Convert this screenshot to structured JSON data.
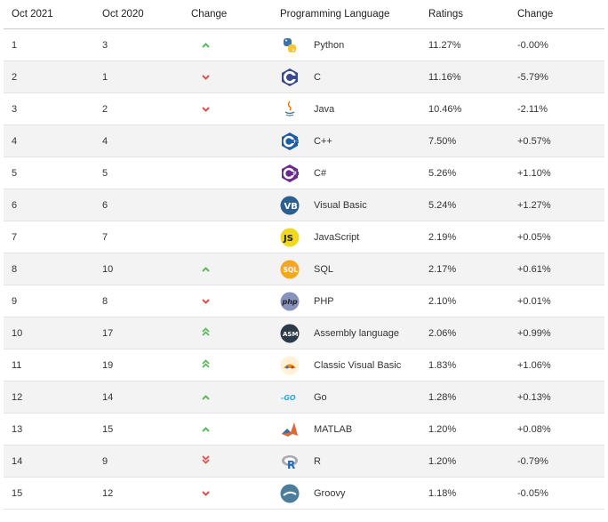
{
  "headers": {
    "rank_now": "Oct 2021",
    "rank_prev": "Oct 2020",
    "change": "Change",
    "language": "Programming Language",
    "ratings": "Ratings",
    "rating_change": "Change"
  },
  "colors": {
    "up": "#5cb85c",
    "down": "#d9534f",
    "stripe": "#f3f3f3"
  },
  "rows": [
    {
      "rank_now": "1",
      "rank_prev": "3",
      "change_icon": "arrow-up-icon",
      "language": "Python",
      "logo_icon": "python-logo-icon",
      "ratings": "11.27%",
      "rating_change": "-0.00%"
    },
    {
      "rank_now": "2",
      "rank_prev": "1",
      "change_icon": "arrow-down-icon",
      "language": "C",
      "logo_icon": "c-logo-icon",
      "ratings": "11.16%",
      "rating_change": "-5.79%"
    },
    {
      "rank_now": "3",
      "rank_prev": "2",
      "change_icon": "arrow-down-icon",
      "language": "Java",
      "logo_icon": "java-logo-icon",
      "ratings": "10.46%",
      "rating_change": "-2.11%"
    },
    {
      "rank_now": "4",
      "rank_prev": "4",
      "change_icon": "",
      "language": "C++",
      "logo_icon": "cpp-logo-icon",
      "ratings": "7.50%",
      "rating_change": "+0.57%"
    },
    {
      "rank_now": "5",
      "rank_prev": "5",
      "change_icon": "",
      "language": "C#",
      "logo_icon": "csharp-logo-icon",
      "ratings": "5.26%",
      "rating_change": "+1.10%"
    },
    {
      "rank_now": "6",
      "rank_prev": "6",
      "change_icon": "",
      "language": "Visual Basic",
      "logo_icon": "vb-logo-icon",
      "ratings": "5.24%",
      "rating_change": "+1.27%"
    },
    {
      "rank_now": "7",
      "rank_prev": "7",
      "change_icon": "",
      "language": "JavaScript",
      "logo_icon": "js-logo-icon",
      "ratings": "2.19%",
      "rating_change": "+0.05%"
    },
    {
      "rank_now": "8",
      "rank_prev": "10",
      "change_icon": "arrow-up-icon",
      "language": "SQL",
      "logo_icon": "sql-logo-icon",
      "ratings": "2.17%",
      "rating_change": "+0.61%"
    },
    {
      "rank_now": "9",
      "rank_prev": "8",
      "change_icon": "arrow-down-icon",
      "language": "PHP",
      "logo_icon": "php-logo-icon",
      "ratings": "2.10%",
      "rating_change": "+0.01%"
    },
    {
      "rank_now": "10",
      "rank_prev": "17",
      "change_icon": "double-arrow-up-icon",
      "language": "Assembly language",
      "logo_icon": "asm-logo-icon",
      "ratings": "2.06%",
      "rating_change": "+0.99%"
    },
    {
      "rank_now": "11",
      "rank_prev": "19",
      "change_icon": "double-arrow-up-icon",
      "language": "Classic Visual Basic",
      "logo_icon": "classic-vb-logo-icon",
      "ratings": "1.83%",
      "rating_change": "+1.06%"
    },
    {
      "rank_now": "12",
      "rank_prev": "14",
      "change_icon": "arrow-up-icon",
      "language": "Go",
      "logo_icon": "go-logo-icon",
      "ratings": "1.28%",
      "rating_change": "+0.13%"
    },
    {
      "rank_now": "13",
      "rank_prev": "15",
      "change_icon": "arrow-up-icon",
      "language": "MATLAB",
      "logo_icon": "matlab-logo-icon",
      "ratings": "1.20%",
      "rating_change": "+0.08%"
    },
    {
      "rank_now": "14",
      "rank_prev": "9",
      "change_icon": "double-arrow-down-icon",
      "language": "R",
      "logo_icon": "r-logo-icon",
      "ratings": "1.20%",
      "rating_change": "-0.79%"
    },
    {
      "rank_now": "15",
      "rank_prev": "12",
      "change_icon": "arrow-down-icon",
      "language": "Groovy",
      "logo_icon": "groovy-logo-icon",
      "ratings": "1.18%",
      "rating_change": "-0.05%"
    }
  ]
}
